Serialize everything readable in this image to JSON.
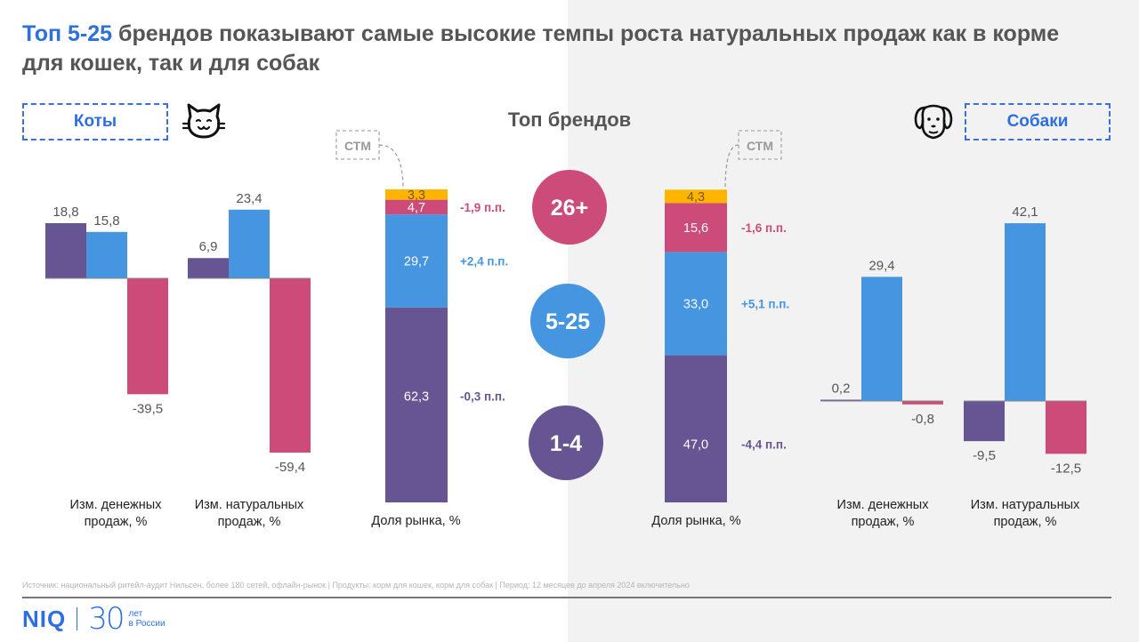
{
  "title": {
    "accent": "Топ 5-25",
    "rest": " брендов показывают самые высокие темпы роста натуральных продаж как в корме для кошек, так и для собак"
  },
  "segments": {
    "cats_label": "Коты",
    "dogs_label": "Собаки",
    "center_heading": "Топ брендов",
    "stm_label": "СТМ"
  },
  "colors": {
    "top1_4": "#665592",
    "top5_25": "#4595e0",
    "top26plus": "#cc4b78",
    "stm": "#ffb400",
    "accent_blue": "#2e6fe0"
  },
  "groups": [
    {
      "name": "1-4",
      "color": "#665592"
    },
    {
      "name": "5-25",
      "color": "#4595e0"
    },
    {
      "name": "26+",
      "color": "#cc4b78"
    }
  ],
  "chart_data": [
    {
      "type": "bar",
      "title": "Коты — Изм. денежных продаж, %",
      "xlabel": "Изм. денежных продаж, %",
      "categories": [
        "1-4",
        "5-25",
        "26+"
      ],
      "values": [
        18.8,
        15.8,
        -39.5
      ],
      "labels": [
        "18,8",
        "15,8",
        "-39,5"
      ]
    },
    {
      "type": "bar",
      "title": "Коты — Изм. натуральных продаж, %",
      "xlabel": "Изм. натуральных продаж, %",
      "categories": [
        "1-4",
        "5-25",
        "26+"
      ],
      "values": [
        6.9,
        23.4,
        -59.4
      ],
      "labels": [
        "6,9",
        "23,4",
        "-59,4"
      ]
    },
    {
      "type": "bar",
      "stacked": true,
      "title": "Коты — Доля рынка, %",
      "xlabel": "Доля рынка, %",
      "categories": [
        "1-4",
        "5-25",
        "26+",
        "СТМ"
      ],
      "values": [
        62.3,
        29.7,
        4.7,
        3.3
      ],
      "labels": [
        "62,3",
        "29,7",
        "4,7",
        "3,3"
      ],
      "changes": [
        "-0,3 п.п.",
        "+2,4 п.п.",
        "-1,9 п.п.",
        null
      ]
    },
    {
      "type": "bar",
      "stacked": true,
      "title": "Собаки — Доля рынка, %",
      "xlabel": "Доля рынка, %",
      "categories": [
        "1-4",
        "5-25",
        "26+",
        "СТМ"
      ],
      "values": [
        47.0,
        33.0,
        15.6,
        4.3
      ],
      "labels": [
        "47,0",
        "33,0",
        "15,6",
        "4,3"
      ],
      "changes": [
        "-4,4 п.п.",
        "+5,1 п.п.",
        "-1,6 п.п.",
        null
      ]
    },
    {
      "type": "bar",
      "title": "Собаки — Изм. денежных продаж, %",
      "xlabel": "Изм. денежных продаж, %",
      "categories": [
        "1-4",
        "5-25",
        "26+"
      ],
      "values": [
        0.2,
        29.4,
        -0.8
      ],
      "labels": [
        "0,2",
        "29,4",
        "-0,8"
      ]
    },
    {
      "type": "bar",
      "title": "Собаки — Изм. натуральных продаж, %",
      "xlabel": "Изм. натуральных продаж, %",
      "categories": [
        "1-4",
        "5-25",
        "26+"
      ],
      "values": [
        -9.5,
        42.1,
        -12.5
      ],
      "labels": [
        "-9,5",
        "42,1",
        "-12,5"
      ]
    }
  ],
  "axis_labels": {
    "money_line1": "Изм. денежных",
    "money_line2": "продаж, %",
    "volume_line1": "Изм. натуральных",
    "volume_line2": "продаж, %",
    "share": "Доля рынка, %"
  },
  "footer": {
    "source": "Источник: национальный ритейл-аудит Нильсен, более 180 сетей, офлайн-рынок | Продукты: корм для кошек, корм для собак | Период: 12 месяцев до апреля 2024 включительно",
    "logo_text": "NIQ",
    "anniversary_number": "30",
    "anniversary_line1": "лет",
    "anniversary_line2": "в России"
  }
}
